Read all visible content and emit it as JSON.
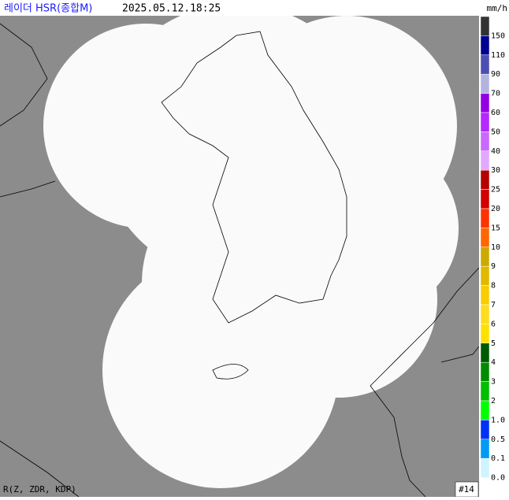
{
  "header": {
    "title": "레이더 HSR(종합M)",
    "timestamp": "2025.05.12.18:25",
    "unit": "mm/h"
  },
  "legend": {
    "levels": [
      {
        "label": "150",
        "color": "#333333"
      },
      {
        "label": "110",
        "color": "#000390"
      },
      {
        "label": "90",
        "color": "#4c4eb1"
      },
      {
        "label": "70",
        "color": "#b3b4de"
      },
      {
        "label": "60",
        "color": "#9300e4"
      },
      {
        "label": "50",
        "color": "#b329ff"
      },
      {
        "label": "40",
        "color": "#c969ff"
      },
      {
        "label": "30",
        "color": "#e0a9ff"
      },
      {
        "label": "25",
        "color": "#b40000"
      },
      {
        "label": "20",
        "color": "#d20000"
      },
      {
        "label": "15",
        "color": "#ff3300"
      },
      {
        "label": "10",
        "color": "#ff6600"
      },
      {
        "label": "9",
        "color": "#ccaa00"
      },
      {
        "label": "8",
        "color": "#e0b900"
      },
      {
        "label": "7",
        "color": "#f9cd00"
      },
      {
        "label": "6",
        "color": "#ffdc1f"
      },
      {
        "label": "5",
        "color": "#ffe100"
      },
      {
        "label": "4",
        "color": "#005a00"
      },
      {
        "label": "3",
        "color": "#008c00"
      },
      {
        "label": "2",
        "color": "#00be00"
      },
      {
        "label": "1.0",
        "color": "#00ff00"
      },
      {
        "label": "0.5",
        "color": "#0033f5"
      },
      {
        "label": "0.1",
        "color": "#009bf5"
      },
      {
        "label": "0.0",
        "color": "#d0f4ff"
      }
    ]
  },
  "footer": {
    "algorithm": "R(Z, ZDR, KDP)",
    "frame": "#14"
  }
}
